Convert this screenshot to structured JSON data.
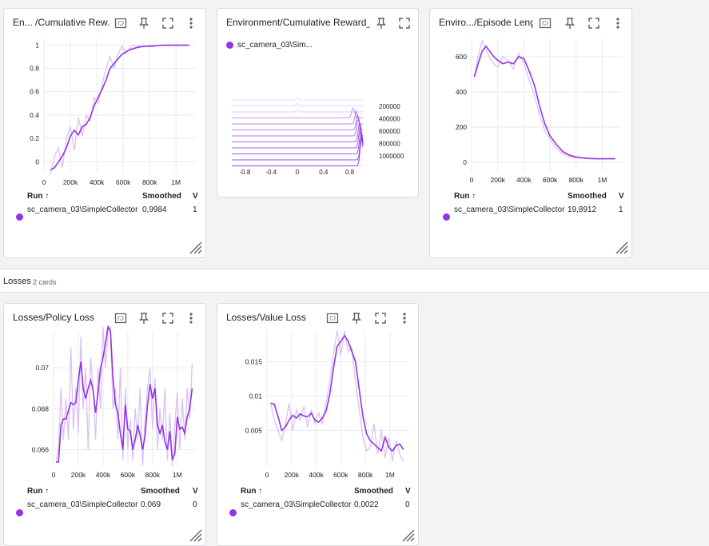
{
  "colors": {
    "accent": "#9334e6",
    "smooth_line": "#9334e6",
    "raw_line": "#d9c2f3"
  },
  "icons": {
    "fit": "fit-to-data-icon",
    "pin": "pin-icon",
    "fullscreen": "fullscreen-icon",
    "more": "more-vert-icon"
  },
  "table": {
    "run_header": "Run ↑",
    "smoothed_header": "Smoothed",
    "value_header": "V"
  },
  "run_name": "sc_camera_03\\SimpleCollector",
  "cards": [
    {
      "title": "En... /Cumulative Rew...",
      "smoothed": "0,9984",
      "value": "1"
    },
    {
      "title": "Environment/Cumulative Reward_hist",
      "legend": "sc_camera_03\\Sim..."
    },
    {
      "title": "Enviro.../Episode Length",
      "smoothed": "19,8912",
      "value": "1"
    },
    {
      "title": "Losses/Policy Loss",
      "smoothed": "0,069",
      "value": "0"
    },
    {
      "title": "Losses/Value Loss",
      "smoothed": "0,0022",
      "value": "0"
    }
  ],
  "section": {
    "name": "Losses",
    "count": "2 cards"
  },
  "chart_data": [
    {
      "type": "line",
      "title": "En... /Cumulative Rew...",
      "xticks": [
        "0",
        "200k",
        "400k",
        "600k",
        "800k",
        "1M"
      ],
      "yticks": [
        "0",
        "0.2",
        "0.4",
        "0.6",
        "0.8",
        "1"
      ],
      "xlim": [
        0,
        1150000
      ],
      "ylim": [
        -0.1,
        1.05
      ],
      "series": [
        {
          "name": "sc_camera_03\\SimpleCollector",
          "x": [
            50000,
            80000,
            110000,
            140000,
            170000,
            200000,
            230000,
            260000,
            290000,
            320000,
            350000,
            380000,
            410000,
            440000,
            470000,
            500000,
            530000,
            560000,
            590000,
            620000,
            650000,
            680000,
            710000,
            740000,
            780000,
            820000,
            860000,
            900000,
            950000,
            1000000,
            1050000,
            1100000
          ],
          "smoothed": [
            -0.07,
            -0.05,
            0.0,
            0.05,
            0.12,
            0.22,
            0.27,
            0.23,
            0.3,
            0.32,
            0.38,
            0.48,
            0.55,
            0.62,
            0.7,
            0.8,
            0.84,
            0.88,
            0.92,
            0.94,
            0.96,
            0.97,
            0.98,
            0.985,
            0.99,
            0.99,
            0.995,
            0.998,
            0.998,
            0.998,
            0.998,
            0.998
          ],
          "raw": [
            -0.1,
            0.05,
            0.12,
            -0.05,
            0.2,
            0.3,
            0.1,
            0.38,
            0.22,
            0.4,
            0.35,
            0.55,
            0.5,
            0.66,
            0.8,
            0.9,
            0.8,
            0.92,
            0.99,
            0.93,
            0.97,
            1.0,
            0.99,
            1.0,
            0.99,
            1.0,
            0.995,
            1.0,
            0.998,
            1.0,
            1.0,
            0.998
          ]
        }
      ]
    },
    {
      "type": "heatmap",
      "title": "Environment/Cumulative Reward_hist",
      "xticks": [
        "-0.8",
        "-0.4",
        "0",
        "0.4",
        "0.8"
      ],
      "yticks": [
        "200000",
        "400000",
        "600000",
        "800000",
        "1000000"
      ],
      "xlim": [
        -1,
        1
      ],
      "ylim": [
        0,
        1150000
      ],
      "series": [
        {
          "name": "sc_camera_03\\SimpleCollector",
          "steps": [
            0,
            100000,
            200000,
            300000,
            400000,
            500000,
            600000,
            700000,
            800000,
            900000,
            1000000,
            1100000
          ],
          "peak_x": [
            0.0,
            0.0,
            0.0,
            0.85,
            0.9,
            0.92,
            0.93,
            0.95,
            0.96,
            0.97,
            0.98,
            0.98
          ]
        }
      ]
    },
    {
      "type": "line",
      "title": "Enviro.../Episode Length",
      "xticks": [
        "0",
        "200k",
        "400k",
        "600k",
        "800k",
        "1M"
      ],
      "yticks": [
        "0",
        "200",
        "400",
        "600"
      ],
      "xlim": [
        0,
        1150000
      ],
      "ylim": [
        -50,
        700
      ],
      "series": [
        {
          "name": "sc_camera_03\\SimpleCollector",
          "x": [
            20000,
            50000,
            80000,
            110000,
            140000,
            170000,
            200000,
            240000,
            280000,
            320000,
            360000,
            400000,
            440000,
            480000,
            520000,
            560000,
            600000,
            650000,
            700000,
            750000,
            800000,
            850000,
            900000,
            950000,
            1000000,
            1050000,
            1100000
          ],
          "smoothed": [
            485,
            560,
            630,
            660,
            630,
            600,
            580,
            560,
            570,
            560,
            600,
            590,
            520,
            440,
            320,
            220,
            150,
            100,
            60,
            40,
            30,
            25,
            22,
            20,
            20,
            20,
            20
          ],
          "raw": [
            485,
            600,
            690,
            640,
            590,
            560,
            540,
            600,
            580,
            530,
            620,
            560,
            470,
            380,
            270,
            180,
            130,
            80,
            45,
            30,
            25,
            22,
            20,
            20,
            19,
            20,
            19
          ]
        }
      ]
    },
    {
      "type": "line",
      "title": "Losses/Policy Loss",
      "xticks": [
        "0",
        "200k",
        "400k",
        "600k",
        "800k",
        "1M"
      ],
      "yticks": [
        "0.066",
        "0.068",
        "0.07"
      ],
      "xlim": [
        0,
        1150000
      ],
      "ylim": [
        0.0652,
        0.0718
      ],
      "series": [
        {
          "name": "sc_camera_03\\SimpleCollector",
          "x": [
            20000,
            40000,
            60000,
            80000,
            100000,
            120000,
            140000,
            160000,
            180000,
            200000,
            220000,
            240000,
            260000,
            280000,
            300000,
            320000,
            340000,
            360000,
            380000,
            400000,
            420000,
            440000,
            460000,
            480000,
            500000,
            520000,
            540000,
            560000,
            580000,
            600000,
            620000,
            640000,
            660000,
            680000,
            700000,
            720000,
            740000,
            760000,
            780000,
            800000,
            820000,
            840000,
            860000,
            880000,
            900000,
            920000,
            940000,
            960000,
            980000,
            1000000,
            1020000,
            1040000,
            1060000,
            1080000,
            1100000,
            1120000
          ],
          "smoothed": [
            0.0654,
            0.0654,
            0.0672,
            0.0675,
            0.0675,
            0.0679,
            0.0683,
            0.0682,
            0.0683,
            0.0694,
            0.0703,
            0.069,
            0.0685,
            0.069,
            0.0694,
            0.0689,
            0.0678,
            0.0688,
            0.07,
            0.0705,
            0.0712,
            0.072,
            0.0718,
            0.0695,
            0.0682,
            0.0678,
            0.0668,
            0.066,
            0.0682,
            0.067,
            0.0669,
            0.066,
            0.0665,
            0.0672,
            0.0667,
            0.066,
            0.0667,
            0.0682,
            0.0692,
            0.0685,
            0.069,
            0.0672,
            0.0668,
            0.0672,
            0.0664,
            0.066,
            0.0669,
            0.0655,
            0.0658,
            0.0676,
            0.067,
            0.0671,
            0.0668,
            0.0676,
            0.068,
            0.069
          ],
          "raw": [
            0.0654,
            0.066,
            0.069,
            0.0665,
            0.0685,
            0.0665,
            0.071,
            0.067,
            0.069,
            0.0668,
            0.0715,
            0.068,
            0.07,
            0.066,
            0.0705,
            0.069,
            0.0665,
            0.07,
            0.068,
            0.072,
            0.07,
            0.0718,
            0.072,
            0.068,
            0.069,
            0.0665,
            0.07,
            0.0655,
            0.069,
            0.066,
            0.0675,
            0.0655,
            0.068,
            0.0665,
            0.069,
            0.0652,
            0.0675,
            0.069,
            0.07,
            0.067,
            0.0695,
            0.066,
            0.068,
            0.0665,
            0.069,
            0.0655,
            0.0678,
            0.0652,
            0.0672,
            0.0688,
            0.066,
            0.0685,
            0.0665,
            0.069,
            0.0675,
            0.0702
          ]
        }
      ]
    },
    {
      "type": "line",
      "title": "Losses/Value Loss",
      "xticks": [
        "0",
        "200k",
        "400k",
        "600k",
        "800k",
        "1M"
      ],
      "yticks": [
        "0.005",
        "0.01",
        "0.015"
      ],
      "xlim": [
        0,
        1150000
      ],
      "ylim": [
        -0.0002,
        0.0195
      ],
      "series": [
        {
          "name": "sc_camera_03\\SimpleCollector",
          "x": [
            30000,
            60000,
            90000,
            120000,
            150000,
            180000,
            210000,
            240000,
            270000,
            300000,
            330000,
            360000,
            390000,
            420000,
            450000,
            480000,
            510000,
            540000,
            570000,
            600000,
            630000,
            660000,
            690000,
            720000,
            750000,
            780000,
            810000,
            840000,
            870000,
            900000,
            930000,
            960000,
            990000,
            1020000,
            1050000,
            1080000,
            1110000
          ],
          "smoothed": [
            0.009,
            0.0088,
            0.007,
            0.005,
            0.0055,
            0.0065,
            0.0072,
            0.0068,
            0.0074,
            0.0071,
            0.007,
            0.0075,
            0.0065,
            0.0062,
            0.0068,
            0.0078,
            0.0102,
            0.014,
            0.0172,
            0.018,
            0.0188,
            0.018,
            0.0165,
            0.015,
            0.011,
            0.007,
            0.0045,
            0.0035,
            0.003,
            0.0025,
            0.002,
            0.004,
            0.0025,
            0.002,
            0.0028,
            0.003,
            0.0022
          ],
          "raw": [
            0.009,
            0.0065,
            0.005,
            0.0035,
            0.006,
            0.009,
            0.005,
            0.008,
            0.0065,
            0.0085,
            0.0055,
            0.008,
            0.006,
            0.0075,
            0.006,
            0.009,
            0.012,
            0.016,
            0.0195,
            0.016,
            0.0195,
            0.0165,
            0.017,
            0.012,
            0.008,
            0.004,
            0.002,
            0.0025,
            0.006,
            0.0015,
            0.005,
            0.001,
            0.004,
            0.0005,
            0.0035,
            0.0015,
            0.0005
          ]
        }
      ]
    }
  ]
}
